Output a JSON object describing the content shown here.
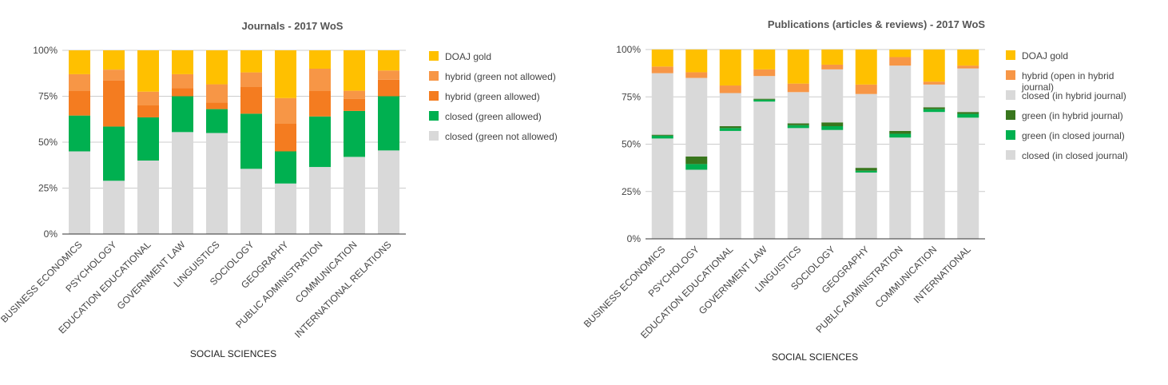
{
  "chart_data": [
    {
      "type": "bar",
      "stacked": true,
      "percent": true,
      "title": "Journals - 2017 WoS",
      "xlabel": "SOCIAL SCIENCES",
      "ylabel": "",
      "ylim": [
        0,
        100
      ],
      "yticks": [
        "0%",
        "25%",
        "50%",
        "75%",
        "100%"
      ],
      "grid": true,
      "legend_position": "right",
      "categories": [
        "BUSINESS ECONOMICS",
        "PSYCHOLOGY",
        "EDUCATION EDUCATIONAL",
        "GOVERNMENT LAW",
        "LINGUISTICS",
        "SOCIOLOGY",
        "GEOGRAPHY",
        "PUBLIC ADMINISTRATION",
        "COMMUNICATION",
        "INTERNATIONAL RELATIONS"
      ],
      "series": [
        {
          "name": "closed (green not allowed)",
          "color": "#d9d9d9",
          "values": [
            45,
            29,
            40,
            55.5,
            55,
            35.5,
            27.5,
            36.5,
            42,
            45.5
          ]
        },
        {
          "name": "closed (green allowed)",
          "color": "#00b050",
          "values": [
            19.5,
            29.5,
            23.5,
            19.5,
            13,
            30,
            17.5,
            27.5,
            25,
            29.5
          ]
        },
        {
          "name": "hybrid (green allowed)",
          "color": "#f47c20",
          "values": [
            13.5,
            25,
            6.5,
            4.5,
            3.5,
            14.5,
            15,
            14,
            6.5,
            9
          ]
        },
        {
          "name": "hybrid (green not allowed)",
          "color": "#f79646",
          "values": [
            9,
            6,
            7.5,
            7.5,
            10,
            8,
            14,
            12,
            4.5,
            5
          ]
        },
        {
          "name": "DOAJ gold",
          "color": "#ffc000",
          "values": [
            13,
            10.5,
            22.5,
            13,
            18.5,
            12,
            26,
            10,
            22,
            11
          ]
        }
      ]
    },
    {
      "type": "bar",
      "stacked": true,
      "percent": true,
      "title": "Publications (articles & reviews) - 2017 WoS",
      "xlabel": "SOCIAL SCIENCES",
      "ylabel": "",
      "ylim": [
        0,
        100
      ],
      "yticks": [
        "0%",
        "25%",
        "50%",
        "75%",
        "100%"
      ],
      "grid": true,
      "legend_position": "right",
      "categories": [
        "BUSINESS ECONOMICS",
        "PSYCHOLOGY",
        "EDUCATION EDUCATIONAL",
        "GOVERNMENT LAW",
        "LINGUISTICS",
        "SOCIOLOGY",
        "GEOGRAPHY",
        "PUBLIC ADMINISTRATION",
        "COMMUNICATION",
        "INTERNATIONAL"
      ],
      "series": [
        {
          "name": "closed (in closed journal)",
          "color": "#d9d9d9",
          "values": [
            53,
            36.5,
            57,
            72.5,
            58.5,
            57.5,
            35,
            53.5,
            67,
            64
          ]
        },
        {
          "name": "green (in closed journal)",
          "color": "#00b050",
          "values": [
            1.5,
            3,
            1.5,
            1,
            1.5,
            2,
            1,
            2,
            1.5,
            2
          ]
        },
        {
          "name": "green (in hybrid journal)",
          "color": "#38761d",
          "values": [
            0.5,
            4,
            1,
            0.5,
            1,
            2,
            1.5,
            1.5,
            1,
            1
          ]
        },
        {
          "name": "closed (in hybrid journal)",
          "color": "#d9d9d9",
          "values": [
            32.5,
            41.5,
            17.5,
            12,
            16.5,
            28,
            39,
            34.5,
            12,
            23
          ]
        },
        {
          "name": "hybrid (open in hybrid journal)",
          "color": "#f79646",
          "values": [
            3.5,
            3,
            4,
            3.5,
            4.5,
            2.5,
            5,
            4.5,
            1.5,
            1.5
          ]
        },
        {
          "name": "DOAJ gold",
          "color": "#ffc000",
          "values": [
            9,
            12,
            19,
            10.5,
            18,
            8,
            18.5,
            4,
            17,
            8.5
          ]
        }
      ]
    }
  ],
  "legends": [
    [
      {
        "label": "DOAJ gold",
        "color": "#ffc000"
      },
      {
        "label": "hybrid (green not allowed)",
        "color": "#f79646"
      },
      {
        "label": "hybrid (green allowed)",
        "color": "#f47c20"
      },
      {
        "label": "closed (green allowed)",
        "color": "#00b050"
      },
      {
        "label": "closed (green not allowed)",
        "color": "#d9d9d9"
      }
    ],
    [
      {
        "label": "DOAJ gold",
        "color": "#ffc000"
      },
      {
        "label": [
          "hybrid (open in hybrid",
          "journal)"
        ],
        "color": "#f79646"
      },
      {
        "label": "closed (in hybrid journal)",
        "color": "#d9d9d9"
      },
      {
        "label": "green (in hybrid journal)",
        "color": "#38761d"
      },
      {
        "label": "green (in closed journal)",
        "color": "#00b050"
      },
      {
        "label": "closed (in closed journal)",
        "color": "#d9d9d9"
      }
    ]
  ]
}
